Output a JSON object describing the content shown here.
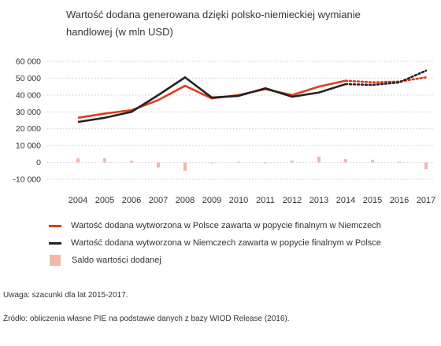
{
  "title": "Wartość dodana generowana dzięki polsko-niemieckiej wymianie handlowej (w mln USD)",
  "note": "Uwaga: szacunki dla lat 2015-2017.",
  "source": "Źródło: obliczenia własne PIE na podstawie danych z bazy WIOD Release (2016).",
  "chart_data": {
    "type": "line",
    "categories": [
      "2004",
      "2005",
      "2006",
      "2007",
      "2008",
      "2009",
      "2010",
      "2011",
      "2012",
      "2013",
      "2014",
      "2015",
      "2016",
      "2017"
    ],
    "estimate_from": "2014",
    "ylim": [
      -10000,
      60000
    ],
    "yticks": [
      -10000,
      0,
      10000,
      20000,
      30000,
      40000,
      50000,
      60000
    ],
    "ytick_labels": [
      "-10 000",
      "0",
      "10 000",
      "20 000",
      "30 000",
      "40 000",
      "50 000",
      "60 000"
    ],
    "grid": "horizontal-dotted",
    "series": [
      {
        "name": "Wartość dodana wytworzona w Polsce zawarta w popycie finalnym w Niemczech",
        "kind": "line",
        "color": "#e03a1e",
        "values": [
          26500,
          29000,
          31000,
          37000,
          45500,
          38000,
          40000,
          43500,
          40000,
          45000,
          48500,
          47500,
          48000,
          50500
        ]
      },
      {
        "name": "Wartość dodana wytworzona w Niemczech zawarta w popycie finalnym w Polsce",
        "kind": "line",
        "color": "#222222",
        "values": [
          24000,
          26500,
          30000,
          40000,
          50500,
          38500,
          39500,
          44000,
          39000,
          41500,
          46500,
          46000,
          47500,
          54500
        ]
      },
      {
        "name": "Saldo wartości dodanej",
        "kind": "bar",
        "color": "#f3b7a9",
        "values": [
          2500,
          2500,
          1000,
          -3000,
          -5000,
          -500,
          500,
          -500,
          1000,
          3500,
          2000,
          1500,
          500,
          -4000
        ]
      }
    ]
  }
}
